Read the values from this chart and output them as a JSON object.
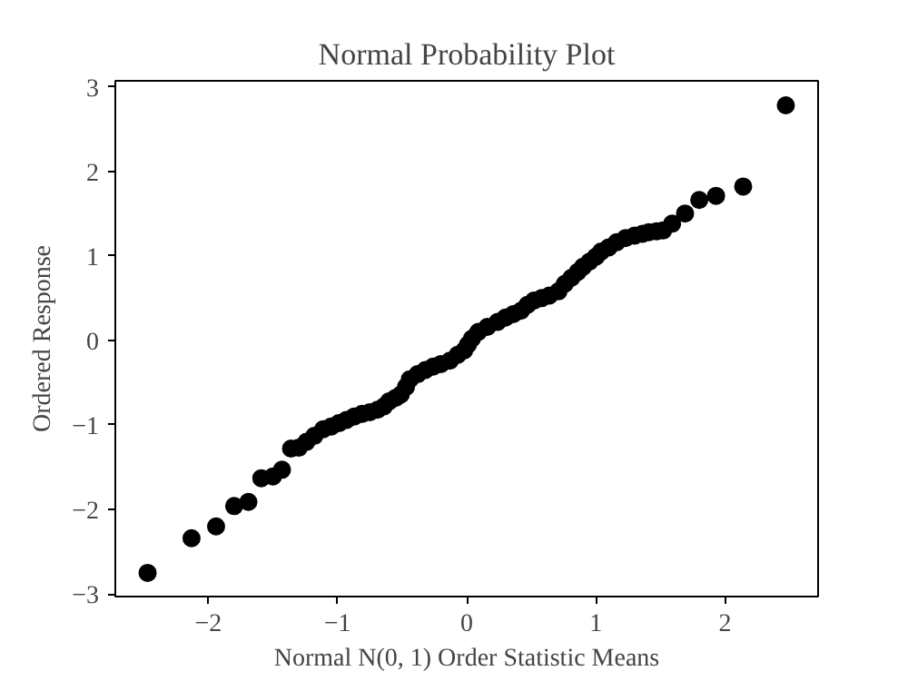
{
  "chart_data": {
    "type": "scatter",
    "title": "Normal Probability Plot",
    "xlabel": "Normal N(0, 1) Order Statistic Means",
    "ylabel": "Ordered Response",
    "xlim": [
      -2.72,
      2.72
    ],
    "ylim": [
      -3.03,
      3.07
    ],
    "xticks": [
      {
        "value": -2,
        "label": "−2"
      },
      {
        "value": -1,
        "label": "−1"
      },
      0,
      1,
      2
    ],
    "yticks": [
      {
        "value": -3,
        "label": "−3"
      },
      {
        "value": -2,
        "label": "−2"
      },
      {
        "value": -1,
        "label": "−1"
      },
      0,
      1,
      2,
      3
    ],
    "grid": false,
    "marker": "circle",
    "series": [
      {
        "color": "#000000",
        "x": [
          -2.47,
          -2.13,
          -1.94,
          -1.8,
          -1.69,
          -1.59,
          -1.5,
          -1.43,
          -1.36,
          -1.3,
          -1.24,
          -1.18,
          -1.11,
          -1.05,
          -0.99,
          -0.93,
          -0.87,
          -0.81,
          -0.75,
          -0.69,
          -0.64,
          -0.6,
          -0.55,
          -0.51,
          -0.47,
          -0.44,
          -0.38,
          -0.32,
          -0.26,
          -0.2,
          -0.13,
          -0.07,
          -0.02,
          0.01,
          0.04,
          0.09,
          0.16,
          0.24,
          0.3,
          0.36,
          0.42,
          0.47,
          0.52,
          0.58,
          0.64,
          0.71,
          0.76,
          0.81,
          0.86,
          0.9,
          0.95,
          1.0,
          1.04,
          1.1,
          1.16,
          1.23,
          1.3,
          1.36,
          1.41,
          1.47,
          1.52,
          1.59,
          1.69,
          1.8,
          1.93,
          2.14,
          2.47
        ],
        "values": [
          -2.75,
          -2.34,
          -2.2,
          -1.96,
          -1.91,
          -1.63,
          -1.61,
          -1.53,
          -1.28,
          -1.27,
          -1.2,
          -1.13,
          -1.05,
          -1.02,
          -0.98,
          -0.94,
          -0.9,
          -0.87,
          -0.85,
          -0.82,
          -0.78,
          -0.72,
          -0.68,
          -0.64,
          -0.55,
          -0.46,
          -0.4,
          -0.35,
          -0.31,
          -0.28,
          -0.24,
          -0.17,
          -0.12,
          -0.05,
          0.02,
          0.1,
          0.16,
          0.22,
          0.27,
          0.31,
          0.35,
          0.42,
          0.47,
          0.5,
          0.53,
          0.58,
          0.67,
          0.74,
          0.81,
          0.87,
          0.93,
          0.99,
          1.05,
          1.1,
          1.16,
          1.21,
          1.24,
          1.26,
          1.28,
          1.29,
          1.3,
          1.38,
          1.5,
          1.66,
          1.71,
          1.82,
          2.78
        ]
      }
    ]
  }
}
